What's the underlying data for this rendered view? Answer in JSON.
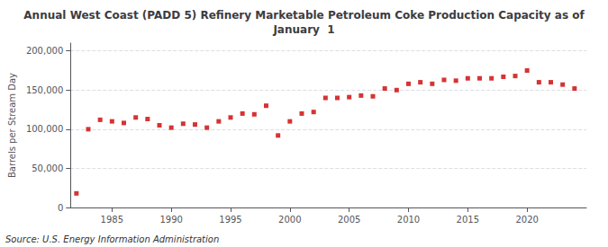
{
  "chart_data": {
    "type": "scatter",
    "title": "Annual West Coast (PADD 5) Refinery Marketable Petroleum Coke Production Capacity as of\nJanuary  1",
    "ylabel": "Barrels per Stream Day",
    "source": "Source: U.S. Energy Information Administration",
    "x": [
      1982,
      1983,
      1984,
      1985,
      1986,
      1987,
      1988,
      1989,
      1990,
      1991,
      1992,
      1993,
      1994,
      1995,
      1996,
      1997,
      1998,
      1999,
      2000,
      2001,
      2002,
      2003,
      2004,
      2005,
      2006,
      2007,
      2008,
      2009,
      2010,
      2011,
      2012,
      2013,
      2014,
      2015,
      2016,
      2017,
      2018,
      2019,
      2020,
      2021,
      2022,
      2023,
      2024
    ],
    "values": [
      18000,
      100000,
      112000,
      110000,
      108000,
      115000,
      113000,
      105000,
      102000,
      107000,
      106000,
      102000,
      110000,
      115000,
      120000,
      119000,
      130000,
      92000,
      110000,
      120000,
      122000,
      140000,
      140000,
      141000,
      143000,
      142000,
      152000,
      150000,
      158000,
      160000,
      158000,
      163000,
      162000,
      165000,
      165000,
      165000,
      167000,
      168000,
      175000,
      160000,
      160000,
      157000,
      152000
    ],
    "color": "#cc0000",
    "marker": "square",
    "xlim": [
      1981.5,
      2025
    ],
    "xticks": [
      1985,
      1990,
      1995,
      2000,
      2005,
      2010,
      2015,
      2020
    ],
    "ylim": [
      0,
      210000
    ],
    "yticks": [
      0,
      {
        "value": 50000,
        "label": "50,000"
      },
      {
        "value": 100000,
        "label": "100,000"
      },
      {
        "value": 150000,
        "label": "150,000"
      },
      {
        "value": 200000,
        "label": "200,000"
      }
    ],
    "grid": true
  }
}
